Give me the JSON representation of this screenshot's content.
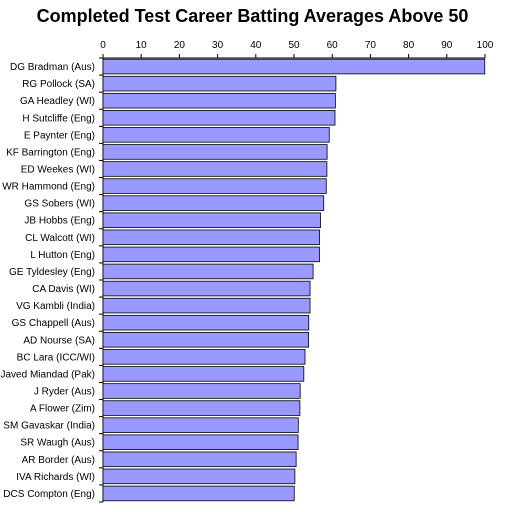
{
  "chart_data": {
    "type": "bar",
    "orientation": "horizontal",
    "title": "Completed Test Career Batting Averages Above 50",
    "xlabel": "",
    "ylabel": "",
    "xlim": [
      0,
      100
    ],
    "xticks": [
      0,
      10,
      20,
      30,
      40,
      50,
      60,
      70,
      80,
      90,
      100
    ],
    "x_axis_position": "top",
    "grid": false,
    "legend": "none",
    "bar_color": "#9999ff",
    "bar_edge_color": "#000000",
    "categories": [
      "DG Bradman (Aus)",
      "RG Pollock (SA)",
      "GA Headley (WI)",
      "H Sutcliffe (Eng)",
      "E Paynter (Eng)",
      "KF Barrington (Eng)",
      "ED Weekes (WI)",
      "WR Hammond (Eng)",
      "GS Sobers (WI)",
      "JB Hobbs (Eng)",
      "CL Walcott (WI)",
      "L Hutton (Eng)",
      "GE Tyldesley (Eng)",
      "CA Davis (WI)",
      "VG Kambli (India)",
      "GS Chappell (Aus)",
      "AD Nourse (SA)",
      "BC Lara (ICC/WI)",
      "Javed Miandad (Pak)",
      "J Ryder (Aus)",
      "A Flower (Zim)",
      "SM Gavaskar (India)",
      "SR Waugh (Aus)",
      "AR Border (Aus)",
      "IVA Richards (WI)",
      "DCS Compton (Eng)"
    ],
    "values": [
      99.94,
      60.97,
      60.83,
      60.73,
      59.23,
      58.67,
      58.61,
      58.45,
      57.78,
      56.94,
      56.68,
      56.67,
      55.0,
      54.2,
      54.2,
      53.86,
      53.81,
      52.88,
      52.57,
      51.62,
      51.54,
      51.12,
      51.06,
      50.56,
      50.23,
      50.06
    ]
  }
}
